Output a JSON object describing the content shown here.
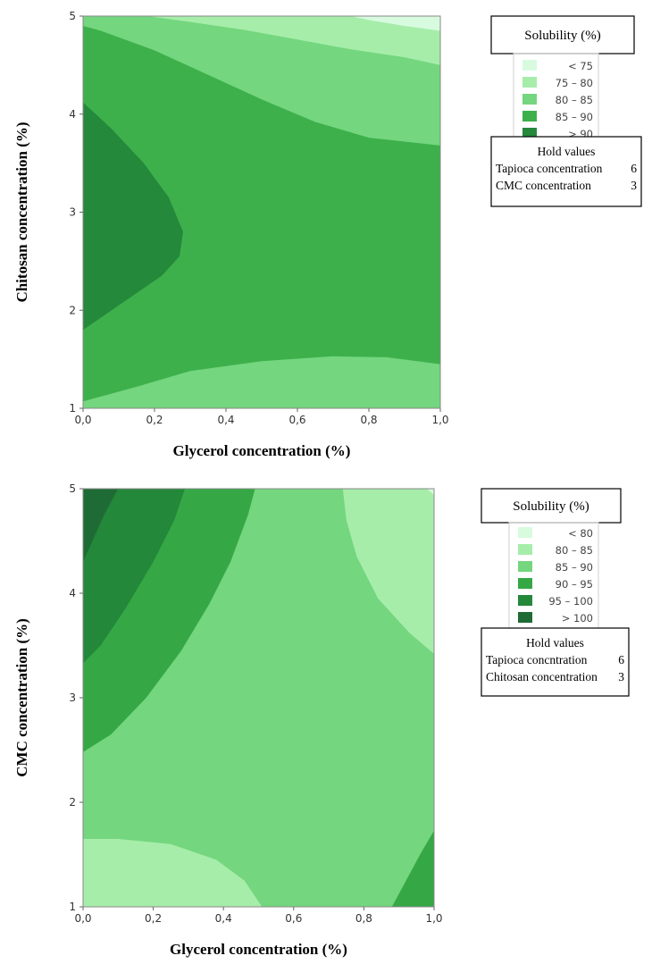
{
  "chart_data": [
    {
      "type": "contour",
      "xlabel": "Glycerol concentration (%)",
      "ylabel": "Chitosan concentration (%)",
      "xlim": [
        0,
        1
      ],
      "ylim": [
        1,
        5
      ],
      "x_ticks": [
        "0,0",
        "0,2",
        "0,4",
        "0,6",
        "0,8",
        "1,0"
      ],
      "y_ticks": [
        "1",
        "2",
        "3",
        "4",
        "5"
      ],
      "legend": {
        "title": "Solubility (%)",
        "entries": [
          {
            "label": "< 75",
            "color": "#d8fbe0"
          },
          {
            "label": "75 – 80",
            "color": "#a6edaa"
          },
          {
            "label": "80 – 85",
            "color": "#74d67e"
          },
          {
            "label": "85 – 90",
            "color": "#3db04c"
          },
          {
            "label": "> 90",
            "color": "#24893a"
          }
        ]
      },
      "hold_values": {
        "title": "Hold values",
        "rows": [
          {
            "label": "Tapioca concentration",
            "value": "6"
          },
          {
            "label": "CMC concentration",
            "value": "3"
          }
        ]
      },
      "regions": [
        {
          "level": "80 – 85",
          "points": [
            [
              0,
              5
            ],
            [
              1,
              5
            ],
            [
              1,
              1
            ],
            [
              0,
              1
            ]
          ]
        },
        {
          "level": "75 – 80",
          "points": [
            [
              0.18,
              5
            ],
            [
              1,
              5
            ],
            [
              1,
              4.5
            ],
            [
              0.9,
              4.58
            ],
            [
              0.75,
              4.66
            ],
            [
              0.6,
              4.76
            ],
            [
              0.45,
              4.86
            ],
            [
              0.3,
              4.94
            ]
          ]
        },
        {
          "level": "< 75",
          "points": [
            [
              0.75,
              5
            ],
            [
              1,
              5
            ],
            [
              1,
              4.85
            ],
            [
              0.9,
              4.9
            ],
            [
              0.8,
              4.96
            ]
          ]
        },
        {
          "level": "85 – 90",
          "points": [
            [
              0,
              4.9
            ],
            [
              0.05,
              4.85
            ],
            [
              0.2,
              4.65
            ],
            [
              0.35,
              4.4
            ],
            [
              0.5,
              4.15
            ],
            [
              0.65,
              3.92
            ],
            [
              0.8,
              3.76
            ],
            [
              1,
              3.68
            ],
            [
              1,
              1.45
            ],
            [
              0.85,
              1.52
            ],
            [
              0.7,
              1.53
            ],
            [
              0.5,
              1.48
            ],
            [
              0.3,
              1.38
            ],
            [
              0.15,
              1.22
            ],
            [
              0,
              1.07
            ]
          ]
        },
        {
          "level": "> 90",
          "points": [
            [
              0,
              4.12
            ],
            [
              0.08,
              3.85
            ],
            [
              0.17,
              3.5
            ],
            [
              0.24,
              3.15
            ],
            [
              0.28,
              2.8
            ],
            [
              0.27,
              2.55
            ],
            [
              0.22,
              2.35
            ],
            [
              0.12,
              2.1
            ],
            [
              0,
              1.8
            ]
          ]
        }
      ]
    },
    {
      "type": "contour",
      "xlabel": "Glycerol concentration (%)",
      "ylabel": "CMC concentration (%)",
      "xlim": [
        0,
        1
      ],
      "ylim": [
        1,
        5
      ],
      "x_ticks": [
        "0,0",
        "0,2",
        "0,4",
        "0,6",
        "0,8",
        "1,0"
      ],
      "y_ticks": [
        "1",
        "2",
        "3",
        "4",
        "5"
      ],
      "legend": {
        "title": "Solubility (%)",
        "entries": [
          {
            "label": "< 80",
            "color": "#d8fbe0"
          },
          {
            "label": "80 – 85",
            "color": "#a6edaa"
          },
          {
            "label": "85 – 90",
            "color": "#74d67e"
          },
          {
            "label": "90 – 95",
            "color": "#35a845"
          },
          {
            "label": "95 – 100",
            "color": "#23883a"
          },
          {
            "label": "> 100",
            "color": "#1f6b35"
          }
        ]
      },
      "hold_values": {
        "title": "Hold values",
        "rows": [
          {
            "label": "Tapioca concntration",
            "value": "6"
          },
          {
            "label": "Chitosan concentration",
            "value": "3"
          }
        ]
      },
      "regions": [
        {
          "level": "85 – 90",
          "points": [
            [
              0,
              5
            ],
            [
              1,
              5
            ],
            [
              1,
              1
            ],
            [
              0,
              1
            ]
          ]
        },
        {
          "level": "90 – 95",
          "points": [
            [
              0,
              5
            ],
            [
              0.49,
              5
            ],
            [
              0.47,
              4.75
            ],
            [
              0.42,
              4.3
            ],
            [
              0.36,
              3.9
            ],
            [
              0.28,
              3.45
            ],
            [
              0.18,
              3.0
            ],
            [
              0.08,
              2.65
            ],
            [
              0,
              2.48
            ]
          ]
        },
        {
          "level": "95 – 100",
          "points": [
            [
              0,
              5
            ],
            [
              0.29,
              5
            ],
            [
              0.26,
              4.7
            ],
            [
              0.2,
              4.3
            ],
            [
              0.12,
              3.85
            ],
            [
              0.05,
              3.5
            ],
            [
              0,
              3.33
            ]
          ]
        },
        {
          "level": "> 100",
          "points": [
            [
              0,
              5
            ],
            [
              0.1,
              5
            ],
            [
              0.06,
              4.75
            ],
            [
              0,
              4.3
            ]
          ]
        },
        {
          "level": "80 – 85",
          "points": [
            [
              0.74,
              5
            ],
            [
              1,
              5
            ],
            [
              1,
              3.42
            ],
            [
              0.93,
              3.62
            ],
            [
              0.84,
              3.95
            ],
            [
              0.78,
              4.35
            ],
            [
              0.75,
              4.7
            ]
          ]
        },
        {
          "level": "< 80",
          "points": [
            [
              0.98,
              5
            ],
            [
              1,
              5
            ],
            [
              1,
              4.94
            ]
          ]
        },
        {
          "level": "80 – 85",
          "points": [
            [
              0,
              1.65
            ],
            [
              0.1,
              1.65
            ],
            [
              0.25,
              1.6
            ],
            [
              0.38,
              1.45
            ],
            [
              0.46,
              1.25
            ],
            [
              0.51,
              1
            ],
            [
              0,
              1
            ]
          ]
        },
        {
          "level": "90 – 95",
          "points": [
            [
              0.88,
              1
            ],
            [
              1,
              1
            ],
            [
              1,
              1.73
            ],
            [
              0.96,
              1.5
            ],
            [
              0.92,
              1.25
            ]
          ]
        }
      ]
    }
  ]
}
